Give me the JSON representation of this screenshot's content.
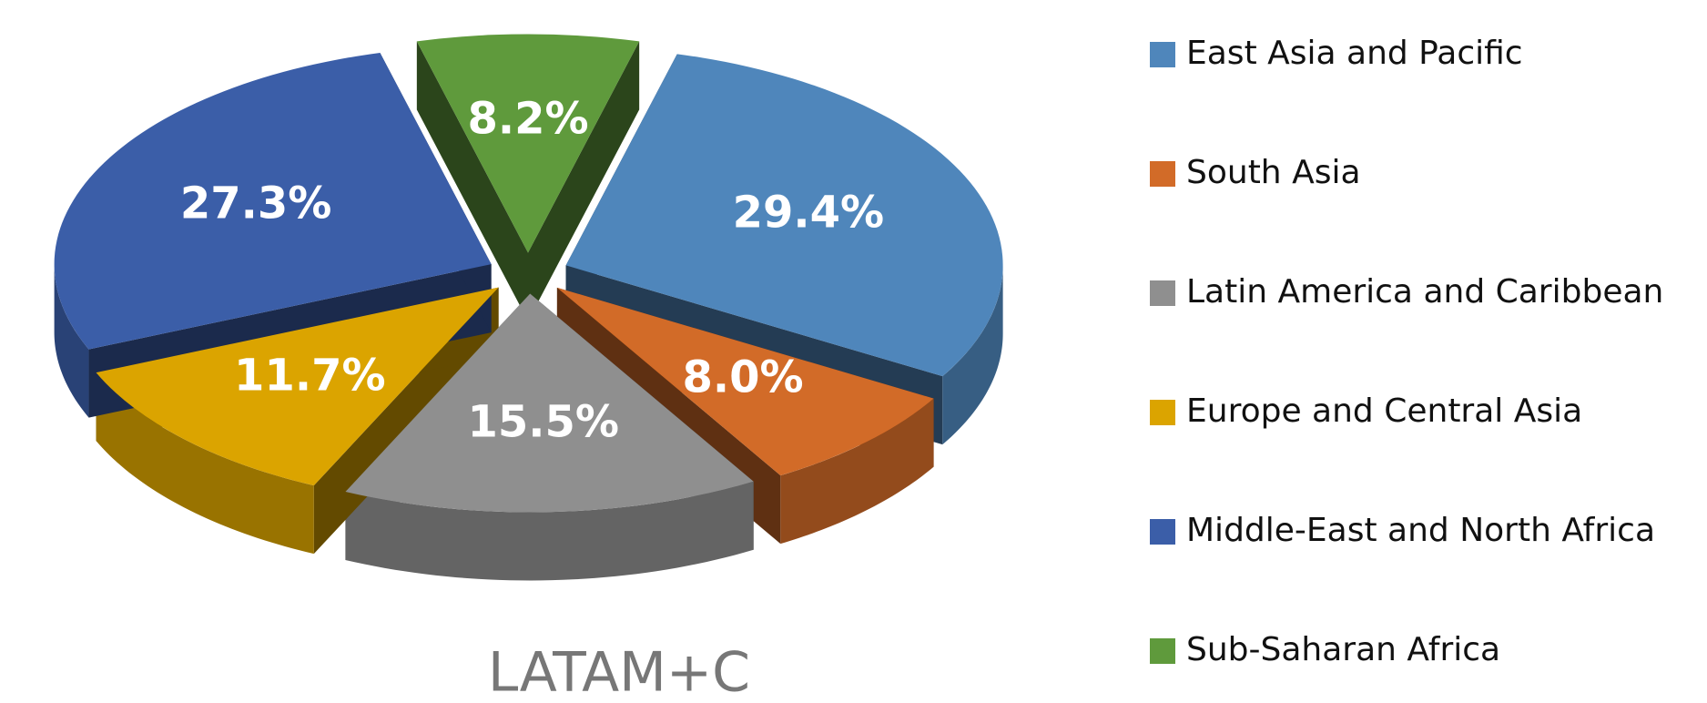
{
  "chart_data": {
    "type": "pie",
    "title": "LATAM+C",
    "categories": [
      "East Asia and Pacific",
      "South Asia",
      "Latin America and Caribbean",
      "Europe and Central Asia",
      "Middle-East and North Africa",
      "Sub-Saharan Africa"
    ],
    "values": [
      29.4,
      8.0,
      15.5,
      11.7,
      27.3,
      8.2
    ],
    "value_labels": [
      "29.4%",
      "8.0%",
      "15.5%",
      "11.7%",
      "27.3%",
      "8.2%"
    ],
    "colors": [
      "#4f86bb",
      "#d26b28",
      "#8f8f8f",
      "#dba400",
      "#3b5ea8",
      "#5f9a3c"
    ],
    "legend": "right"
  }
}
